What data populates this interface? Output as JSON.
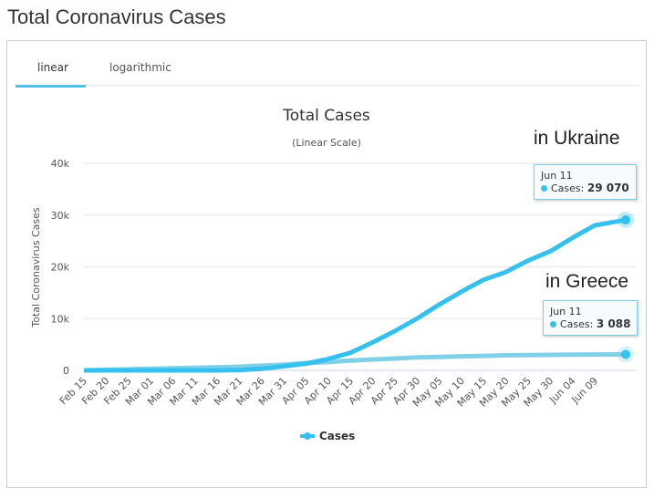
{
  "page_title": "Total Coronavirus Cases",
  "tabs": [
    {
      "label": "linear"
    },
    {
      "label": "logarithmic"
    }
  ],
  "annotations": {
    "ukraine": "in Ukraine",
    "greece": "in Greece"
  },
  "tooltips": [
    {
      "date": "Jun 11",
      "label": "Cases:",
      "value": "29 070"
    },
    {
      "date": "Jun 11",
      "label": "Cases:",
      "value": "3 088"
    }
  ],
  "chart_data": {
    "type": "line",
    "title": "Total Cases",
    "subtitle": "(Linear Scale)",
    "ylabel": "Total Coronavirus Cases",
    "ylim": [
      0,
      40000
    ],
    "yticks": [
      "0",
      "10k",
      "20k",
      "30k",
      "40k"
    ],
    "xticks": [
      "Feb 15",
      "Feb 20",
      "Feb 25",
      "Mar 01",
      "Mar 06",
      "Mar 11",
      "Mar 16",
      "Mar 21",
      "Mar 26",
      "Mar 31",
      "Apr 05",
      "Apr 10",
      "Apr 15",
      "Apr 20",
      "Apr 25",
      "Apr 30",
      "May 05",
      "May 10",
      "May 15",
      "May 20",
      "May 25",
      "May 30",
      "Jun 04",
      "Jun 09"
    ],
    "legend": "Cases",
    "legend_position": "bottom",
    "series": [
      {
        "name": "Ukraine",
        "color": "#35c0ee",
        "values": [
          0,
          0,
          0,
          0,
          0,
          1,
          5,
          50,
          300,
          800,
          1300,
          2200,
          3400,
          5400,
          7600,
          10000,
          12700,
          15200,
          17500,
          19000,
          21200,
          23000,
          25600,
          28000,
          29070
        ]
      },
      {
        "name": "Greece",
        "color": "#80d0e8",
        "values": [
          0,
          100,
          200,
          300,
          400,
          500,
          600,
          700,
          900,
          1100,
          1400,
          1600,
          1900,
          2100,
          2300,
          2500,
          2600,
          2700,
          2800,
          2900,
          2950,
          3000,
          3040,
          3060,
          3088
        ]
      }
    ]
  }
}
